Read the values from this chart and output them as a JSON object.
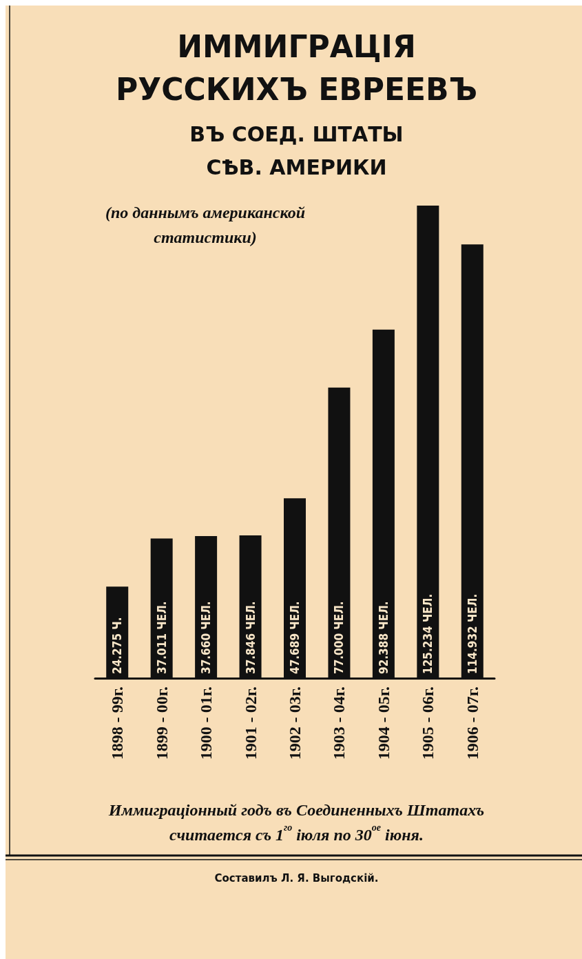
{
  "chart_data": {
    "type": "bar",
    "title": "ИММИГРАЦІЯ\nРУССКИХЪ ЕВРЕЕВЪ",
    "subtitle": "ВЪ СОЕД. ШТАТЫ\nСѢВ. АМЕРИКИ",
    "annotations": [
      "(по даннымъ американской\nстатистики)",
      "Иммиграціонный годъ въ Соединенныхъ Штатахъ\nсчитается съ 1$^{го}$ іюля по 30$^{ое}$ іюня.",
      "Составилъ Л. Я. Выгодскій."
    ],
    "categories": [
      "1898 - 99г.",
      "1899 - 00г.",
      "1900 - 01г.",
      "1901 - 02г.",
      "1902 - 03г.",
      "1903 - 04г.",
      "1904 - 05г.",
      "1905 - 06г.",
      "1906 - 07г."
    ],
    "values": [
      24275,
      37011,
      37660,
      37846,
      47689,
      77000,
      92388,
      125234,
      114932
    ],
    "value_labels": [
      "24.275 Ч.",
      "37.011 ЧЕЛ.",
      "37.660 ЧЕЛ.",
      "37.846 ЧЕЛ.",
      "47.689 ЧЕЛ.",
      "77.000 ЧЕЛ.",
      "92.388 ЧЕЛ.",
      "125.234 ЧЕЛ.",
      "114.932 ЧЕЛ."
    ],
    "color": "#111111"
  }
}
